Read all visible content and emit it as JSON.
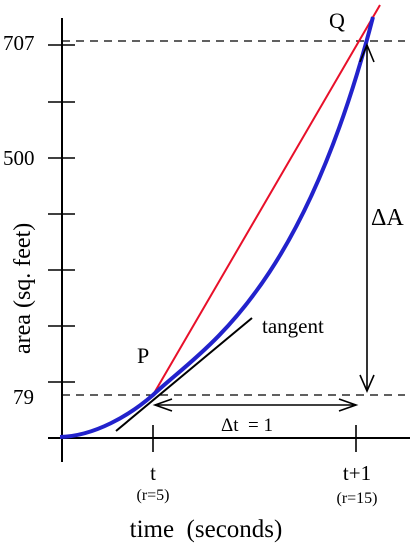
{
  "chart_data": {
    "type": "line",
    "title": "",
    "xlabel": "time  (seconds)",
    "ylabel": "area  (sq. feet)",
    "y_tick_labels": [
      "707",
      "500",
      "79"
    ],
    "x_tick_labels": [
      "t",
      "t+1"
    ],
    "x_sub_labels": [
      "(r=5)",
      "(r=15)"
    ],
    "point_labels": {
      "P": "P",
      "Q": "Q"
    },
    "line_labels": {
      "tangent": "tangent"
    },
    "annotations": {
      "delta_A": "ΔA",
      "delta_t": "Δt  = 1"
    },
    "points": [
      {
        "name": "P",
        "x_label": "t",
        "area": 79
      },
      {
        "name": "Q",
        "x_label": "t+1",
        "area": 707
      }
    ],
    "series": [
      {
        "values": [
          {
            "r": 0,
            "area": 0
          },
          {
            "r": 5,
            "area": 79
          },
          {
            "r": 10,
            "area": 314
          },
          {
            "r": 15,
            "area": 707
          }
        ]
      }
    ],
    "grid": false,
    "colors": {
      "curve": "#2222cc",
      "secant": "#e8102a",
      "tangent": "#000000",
      "axes": "#000000"
    }
  }
}
